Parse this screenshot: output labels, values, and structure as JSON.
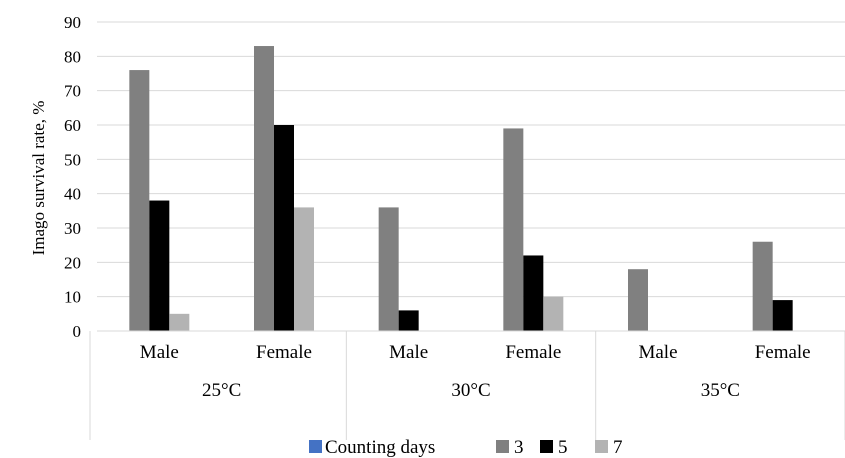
{
  "chart_data": {
    "type": "bar",
    "ylabel": "Imago survival rate, %",
    "ylim": [
      0,
      90
    ],
    "yticks": [
      0,
      10,
      20,
      30,
      40,
      50,
      60,
      70,
      80,
      90
    ],
    "grid": true,
    "legend_position": "bottom",
    "legend_title": "Counting days",
    "groups": [
      {
        "label": "25°C",
        "categories": [
          "Male",
          "Female"
        ]
      },
      {
        "label": "30°C",
        "categories": [
          "Male",
          "Female"
        ]
      },
      {
        "label": "35°C",
        "categories": [
          "Male",
          "Female"
        ]
      }
    ],
    "series": [
      {
        "name": "3",
        "color": "#808080",
        "values": [
          76,
          83,
          36,
          59,
          18,
          26
        ]
      },
      {
        "name": "5",
        "color": "#000000",
        "values": [
          38,
          60,
          6,
          22,
          0,
          9
        ]
      },
      {
        "name": "7",
        "color": "#b3b3b3",
        "values": [
          5,
          36,
          0,
          10,
          0,
          0
        ]
      }
    ],
    "legend_marker_color": "#4472c4"
  }
}
